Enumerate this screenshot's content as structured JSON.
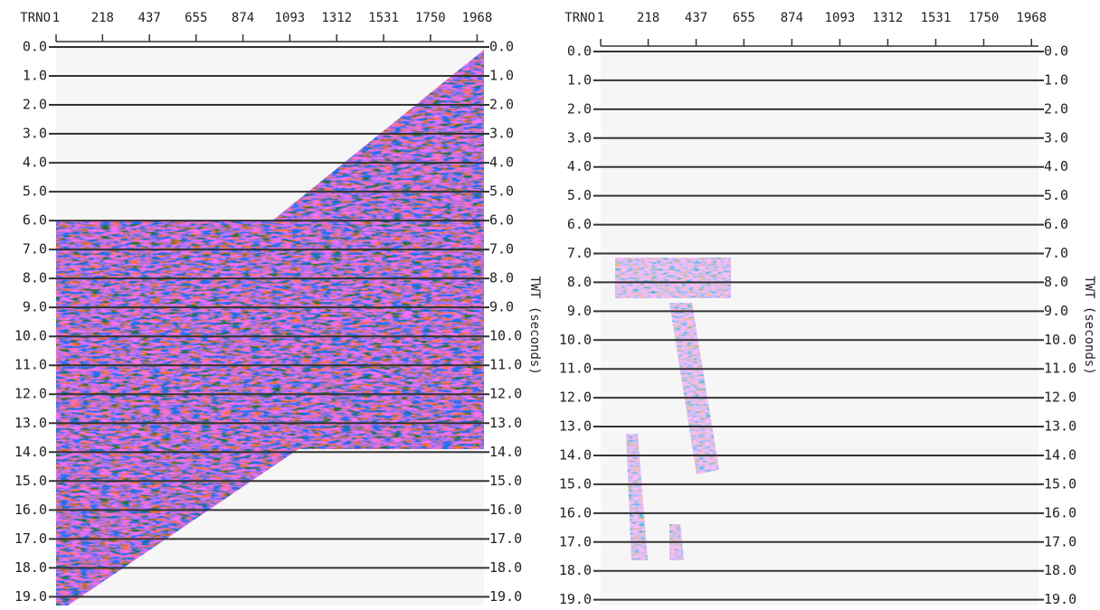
{
  "chart_data": [
    {
      "type": "seismic",
      "xlabel": "TRNO",
      "ylabel": "TWT (seconds)",
      "xlim": [
        1,
        2000
      ],
      "xticks": [
        1,
        218,
        437,
        655,
        874,
        1093,
        1312,
        1531,
        1750,
        1968
      ],
      "ylim": [
        0,
        19.3
      ],
      "yticks": [
        {
          "value": 0,
          "label": "0.0"
        },
        {
          "value": 1,
          "label": "1.0"
        },
        {
          "value": 2,
          "label": "2.0"
        },
        {
          "value": 3,
          "label": "3.0"
        },
        {
          "value": 4,
          "label": "4.0"
        },
        {
          "value": 5,
          "label": "5.0"
        },
        {
          "value": 6,
          "label": "6.0"
        },
        {
          "value": 7,
          "label": "7.0"
        },
        {
          "value": 8,
          "label": "8.0"
        },
        {
          "value": 9,
          "label": "9.0"
        },
        {
          "value": 10,
          "label": "10.0"
        },
        {
          "value": 11,
          "label": "11.0"
        },
        {
          "value": 12,
          "label": "12.0"
        },
        {
          "value": 13,
          "label": "13.0"
        },
        {
          "value": 14,
          "label": "14.0"
        },
        {
          "value": 15,
          "label": "15.0"
        },
        {
          "value": 16,
          "label": "16.0"
        },
        {
          "value": 17,
          "label": "17.0"
        },
        {
          "value": 18,
          "label": "18.0"
        },
        {
          "value": 19,
          "label": "19.0"
        }
      ],
      "grid": true
    },
    {
      "type": "seismic",
      "xlabel": "TRNO",
      "ylabel": "TWT (seconds)",
      "xlim": [
        1,
        2000
      ],
      "xticks": [
        1,
        218,
        437,
        655,
        874,
        1093,
        1312,
        1531,
        1750,
        1968
      ],
      "ylim": [
        0,
        19.2
      ],
      "yticks": [
        {
          "value": 0,
          "label": "0.0"
        },
        {
          "value": 1,
          "label": "1.0"
        },
        {
          "value": 2,
          "label": "2.0"
        },
        {
          "value": 3,
          "label": "3.0"
        },
        {
          "value": 4,
          "label": "4.0"
        },
        {
          "value": 5,
          "label": "5.0"
        },
        {
          "value": 6,
          "label": "6.0"
        },
        {
          "value": 7,
          "label": "7.0"
        },
        {
          "value": 8,
          "label": "8.0"
        },
        {
          "value": 9,
          "label": "9.0"
        },
        {
          "value": 10,
          "label": "10.0"
        },
        {
          "value": 11,
          "label": "11.0"
        },
        {
          "value": 12,
          "label": "12.0"
        },
        {
          "value": 13,
          "label": "13.0"
        },
        {
          "value": 14,
          "label": "14.0"
        },
        {
          "value": 15,
          "label": "15.0"
        },
        {
          "value": 16,
          "label": "16.0"
        },
        {
          "value": 17,
          "label": "17.0"
        },
        {
          "value": 18,
          "label": "18.0"
        },
        {
          "value": 19,
          "label": "19.0"
        }
      ],
      "grid": true
    }
  ]
}
